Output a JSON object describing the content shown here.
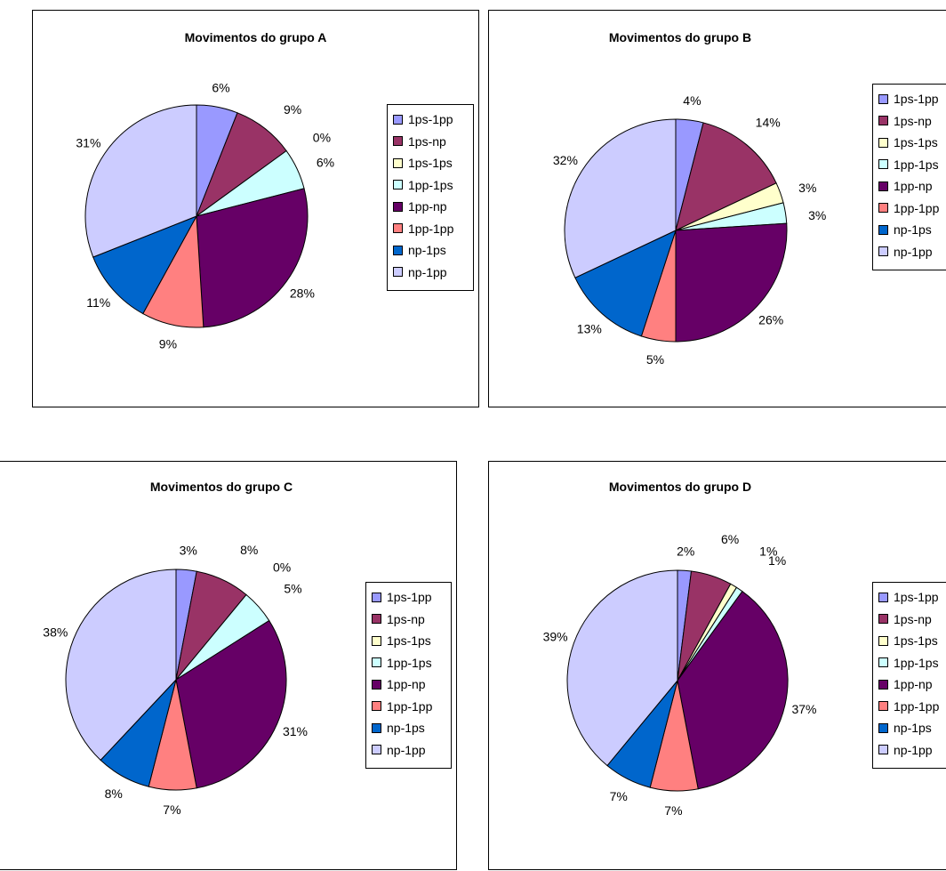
{
  "series_labels": [
    "1ps-1pp",
    "1ps-np",
    "1ps-1ps",
    "1pp-1ps",
    "1pp-np",
    "1pp-1pp",
    "np-1ps",
    "np-1pp"
  ],
  "colors": [
    "#9999ff",
    "#993366",
    "#ffffcc",
    "#ccffff",
    "#660066",
    "#ff8080",
    "#0066cc",
    "#ccccff"
  ],
  "chart_data": [
    {
      "type": "pie",
      "title": "Movimentos do grupo A",
      "categories": [
        "1ps-1pp",
        "1ps-np",
        "1ps-1ps",
        "1pp-1ps",
        "1pp-np",
        "1pp-1pp",
        "np-1ps",
        "np-1pp"
      ],
      "values": [
        6,
        9,
        0,
        6,
        28,
        9,
        11,
        31
      ],
      "data_labels": [
        "6%",
        "9%",
        "0%",
        "6%",
        "28%",
        "9%",
        "11%",
        "31%"
      ],
      "legend": "right"
    },
    {
      "type": "pie",
      "title": "Movimentos do grupo B",
      "categories": [
        "1ps-1pp",
        "1ps-np",
        "1ps-1ps",
        "1pp-1ps",
        "1pp-np",
        "1pp-1pp",
        "np-1ps",
        "np-1pp"
      ],
      "values": [
        4,
        14,
        3,
        3,
        26,
        5,
        13,
        32
      ],
      "data_labels": [
        "4%",
        "14%",
        "3%",
        "3%",
        "26%",
        "5%",
        "13%",
        "32%"
      ],
      "legend": "right"
    },
    {
      "type": "pie",
      "title": "Movimentos do grupo C",
      "categories": [
        "1ps-1pp",
        "1ps-np",
        "1ps-1ps",
        "1pp-1ps",
        "1pp-np",
        "1pp-1pp",
        "np-1ps",
        "np-1pp"
      ],
      "values": [
        3,
        8,
        0,
        5,
        31,
        7,
        8,
        38
      ],
      "data_labels": [
        "3%",
        "8%",
        "0%",
        "5%",
        "31%",
        "7%",
        "8%",
        "38%"
      ],
      "legend": "right"
    },
    {
      "type": "pie",
      "title": "Movimentos do grupo D",
      "categories": [
        "1ps-1pp",
        "1ps-np",
        "1ps-1ps",
        "1pp-1ps",
        "1pp-np",
        "1pp-1pp",
        "np-1ps",
        "np-1pp"
      ],
      "values": [
        2,
        6,
        1,
        1,
        37,
        7,
        7,
        39
      ],
      "data_labels": [
        "2%",
        "6%",
        "1%",
        "1%",
        "37%",
        "7%",
        "7%",
        "39%"
      ],
      "legend": "right"
    }
  ]
}
